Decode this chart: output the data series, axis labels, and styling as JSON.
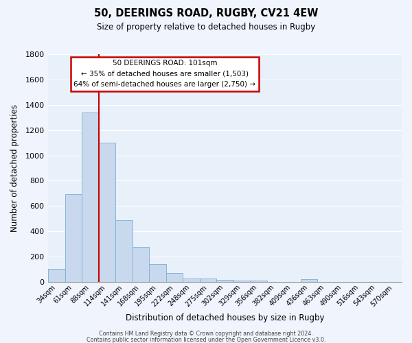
{
  "title": "50, DEERINGS ROAD, RUGBY, CV21 4EW",
  "subtitle": "Size of property relative to detached houses in Rugby",
  "xlabel": "Distribution of detached houses by size in Rugby",
  "ylabel": "Number of detached properties",
  "bar_color": "#c8d9ee",
  "bar_edge_color": "#7aaed6",
  "background_color": "#e8f0fa",
  "grid_color": "#ffffff",
  "fig_background": "#f0f4fc",
  "categories": [
    "34sqm",
    "61sqm",
    "88sqm",
    "114sqm",
    "141sqm",
    "168sqm",
    "195sqm",
    "222sqm",
    "248sqm",
    "275sqm",
    "302sqm",
    "329sqm",
    "356sqm",
    "382sqm",
    "409sqm",
    "436sqm",
    "463sqm",
    "490sqm",
    "516sqm",
    "543sqm",
    "570sqm"
  ],
  "values": [
    100,
    695,
    1340,
    1100,
    490,
    275,
    140,
    70,
    25,
    25,
    15,
    10,
    10,
    0,
    0,
    20,
    0,
    0,
    0,
    0,
    0
  ],
  "ylim": [
    0,
    1800
  ],
  "yticks": [
    0,
    200,
    400,
    600,
    800,
    1000,
    1200,
    1400,
    1600,
    1800
  ],
  "vline_x_index": 2.5,
  "vline_color": "#cc0000",
  "annotation_title": "50 DEERINGS ROAD: 101sqm",
  "annotation_line1": "← 35% of detached houses are smaller (1,503)",
  "annotation_line2": "64% of semi-detached houses are larger (2,750) →",
  "annotation_box_color": "#ffffff",
  "annotation_box_edge": "#cc0000",
  "footer1": "Contains HM Land Registry data © Crown copyright and database right 2024.",
  "footer2": "Contains public sector information licensed under the Open Government Licence v3.0."
}
